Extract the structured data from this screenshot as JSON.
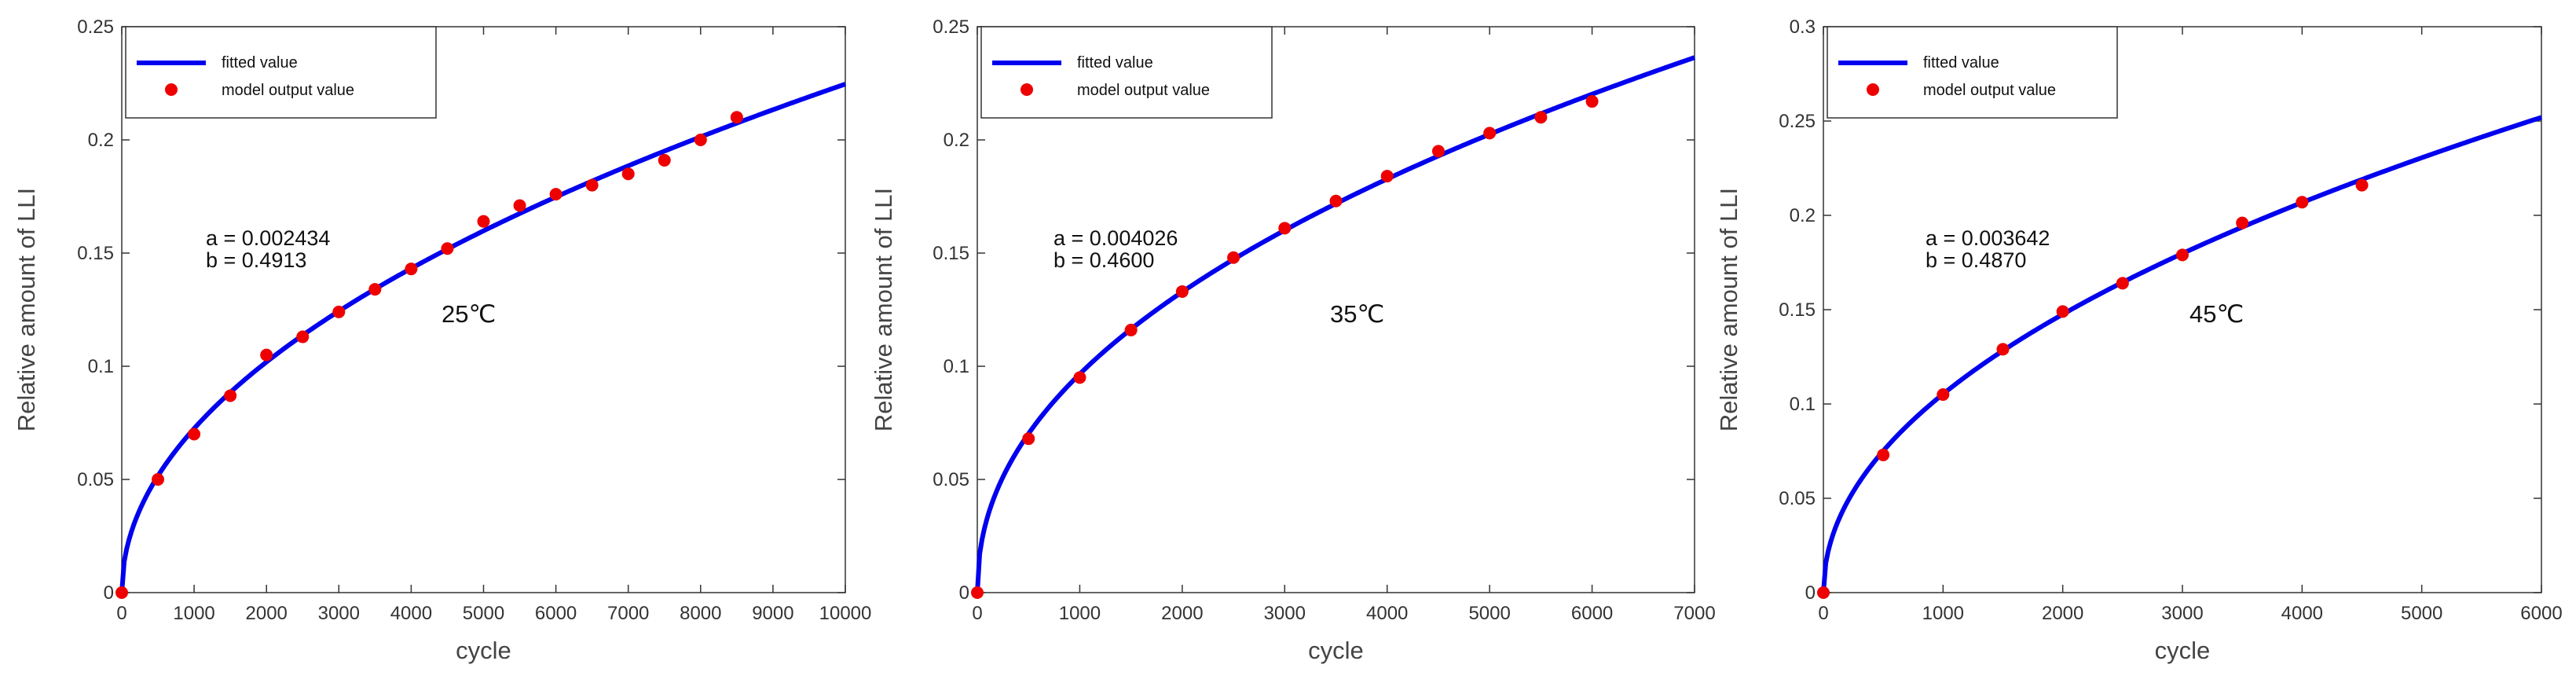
{
  "chart_data": [
    {
      "type": "line",
      "xlabel": "cycle",
      "ylabel": "Relative amount of LLI",
      "xlim": [
        0,
        10000
      ],
      "ylim": [
        0,
        0.25
      ],
      "xticks": [
        "0",
        "1000",
        "2000",
        "3000",
        "4000",
        "5000",
        "6000",
        "7000",
        "8000",
        "9000",
        "10000"
      ],
      "yticks": [
        "0",
        "0.05",
        "0.1",
        "0.15",
        "0.2",
        "0.25"
      ],
      "legend": [
        "fitted value",
        "model output value"
      ],
      "legend_position": "top-left",
      "colors": {
        "fitted": "#0000ee",
        "model": "#ee0000"
      },
      "fit": {
        "a": 0.002434,
        "b": 0.4913
      },
      "annotations": [
        "a = 0.002434",
        "b = 0.4913"
      ],
      "temperature": "25℃",
      "points": {
        "x": [
          0,
          500,
          1000,
          1500,
          2000,
          2500,
          3000,
          3500,
          4000,
          4500,
          5000,
          5500,
          6000,
          6500,
          7000,
          7500,
          8000,
          8500
        ],
        "y": [
          0,
          0.05,
          0.07,
          0.087,
          0.105,
          0.113,
          0.124,
          0.134,
          0.143,
          0.152,
          0.164,
          0.171,
          0.176,
          0.18,
          0.185,
          0.191,
          0.2,
          0.21
        ]
      }
    },
    {
      "type": "line",
      "xlabel": "cycle",
      "ylabel": "Relative amount of LLI",
      "xlim": [
        0,
        7000
      ],
      "ylim": [
        0,
        0.25
      ],
      "xticks": [
        "0",
        "1000",
        "2000",
        "3000",
        "4000",
        "5000",
        "6000",
        "7000"
      ],
      "yticks": [
        "0",
        "0.05",
        "0.1",
        "0.15",
        "0.2",
        "0.25"
      ],
      "legend": [
        "fitted value",
        "model output value"
      ],
      "legend_position": "top-left",
      "colors": {
        "fitted": "#0000ee",
        "model": "#ee0000"
      },
      "fit": {
        "a": 0.004026,
        "b": 0.46
      },
      "annotations": [
        "a = 0.004026",
        "b = 0.4600"
      ],
      "temperature": "35℃",
      "points": {
        "x": [
          0,
          500,
          1000,
          1500,
          2000,
          2500,
          3000,
          3500,
          4000,
          4500,
          5000,
          5500,
          6000
        ],
        "y": [
          0,
          0.068,
          0.095,
          0.116,
          0.133,
          0.148,
          0.161,
          0.173,
          0.184,
          0.195,
          0.203,
          0.21,
          0.217
        ]
      }
    },
    {
      "type": "line",
      "xlabel": "cycle",
      "ylabel": "Relative amount of LLI",
      "xlim": [
        0,
        6000
      ],
      "ylim": [
        0,
        0.3
      ],
      "xticks": [
        "0",
        "1000",
        "2000",
        "3000",
        "4000",
        "5000",
        "6000"
      ],
      "yticks": [
        "0",
        "0.05",
        "0.1",
        "0.15",
        "0.2",
        "0.25",
        "0.3"
      ],
      "legend": [
        "fitted value",
        "model output value"
      ],
      "legend_position": "top-left",
      "colors": {
        "fitted": "#0000ee",
        "model": "#ee0000"
      },
      "fit": {
        "a": 0.003642,
        "b": 0.487
      },
      "annotations": [
        "a = 0.003642",
        "b = 0.4870"
      ],
      "temperature": "45℃",
      "points": {
        "x": [
          0,
          500,
          1000,
          1500,
          2000,
          2500,
          3000,
          3500,
          4000,
          4500
        ],
        "y": [
          0,
          0.073,
          0.105,
          0.129,
          0.149,
          0.164,
          0.179,
          0.196,
          0.207,
          0.216
        ]
      }
    }
  ]
}
